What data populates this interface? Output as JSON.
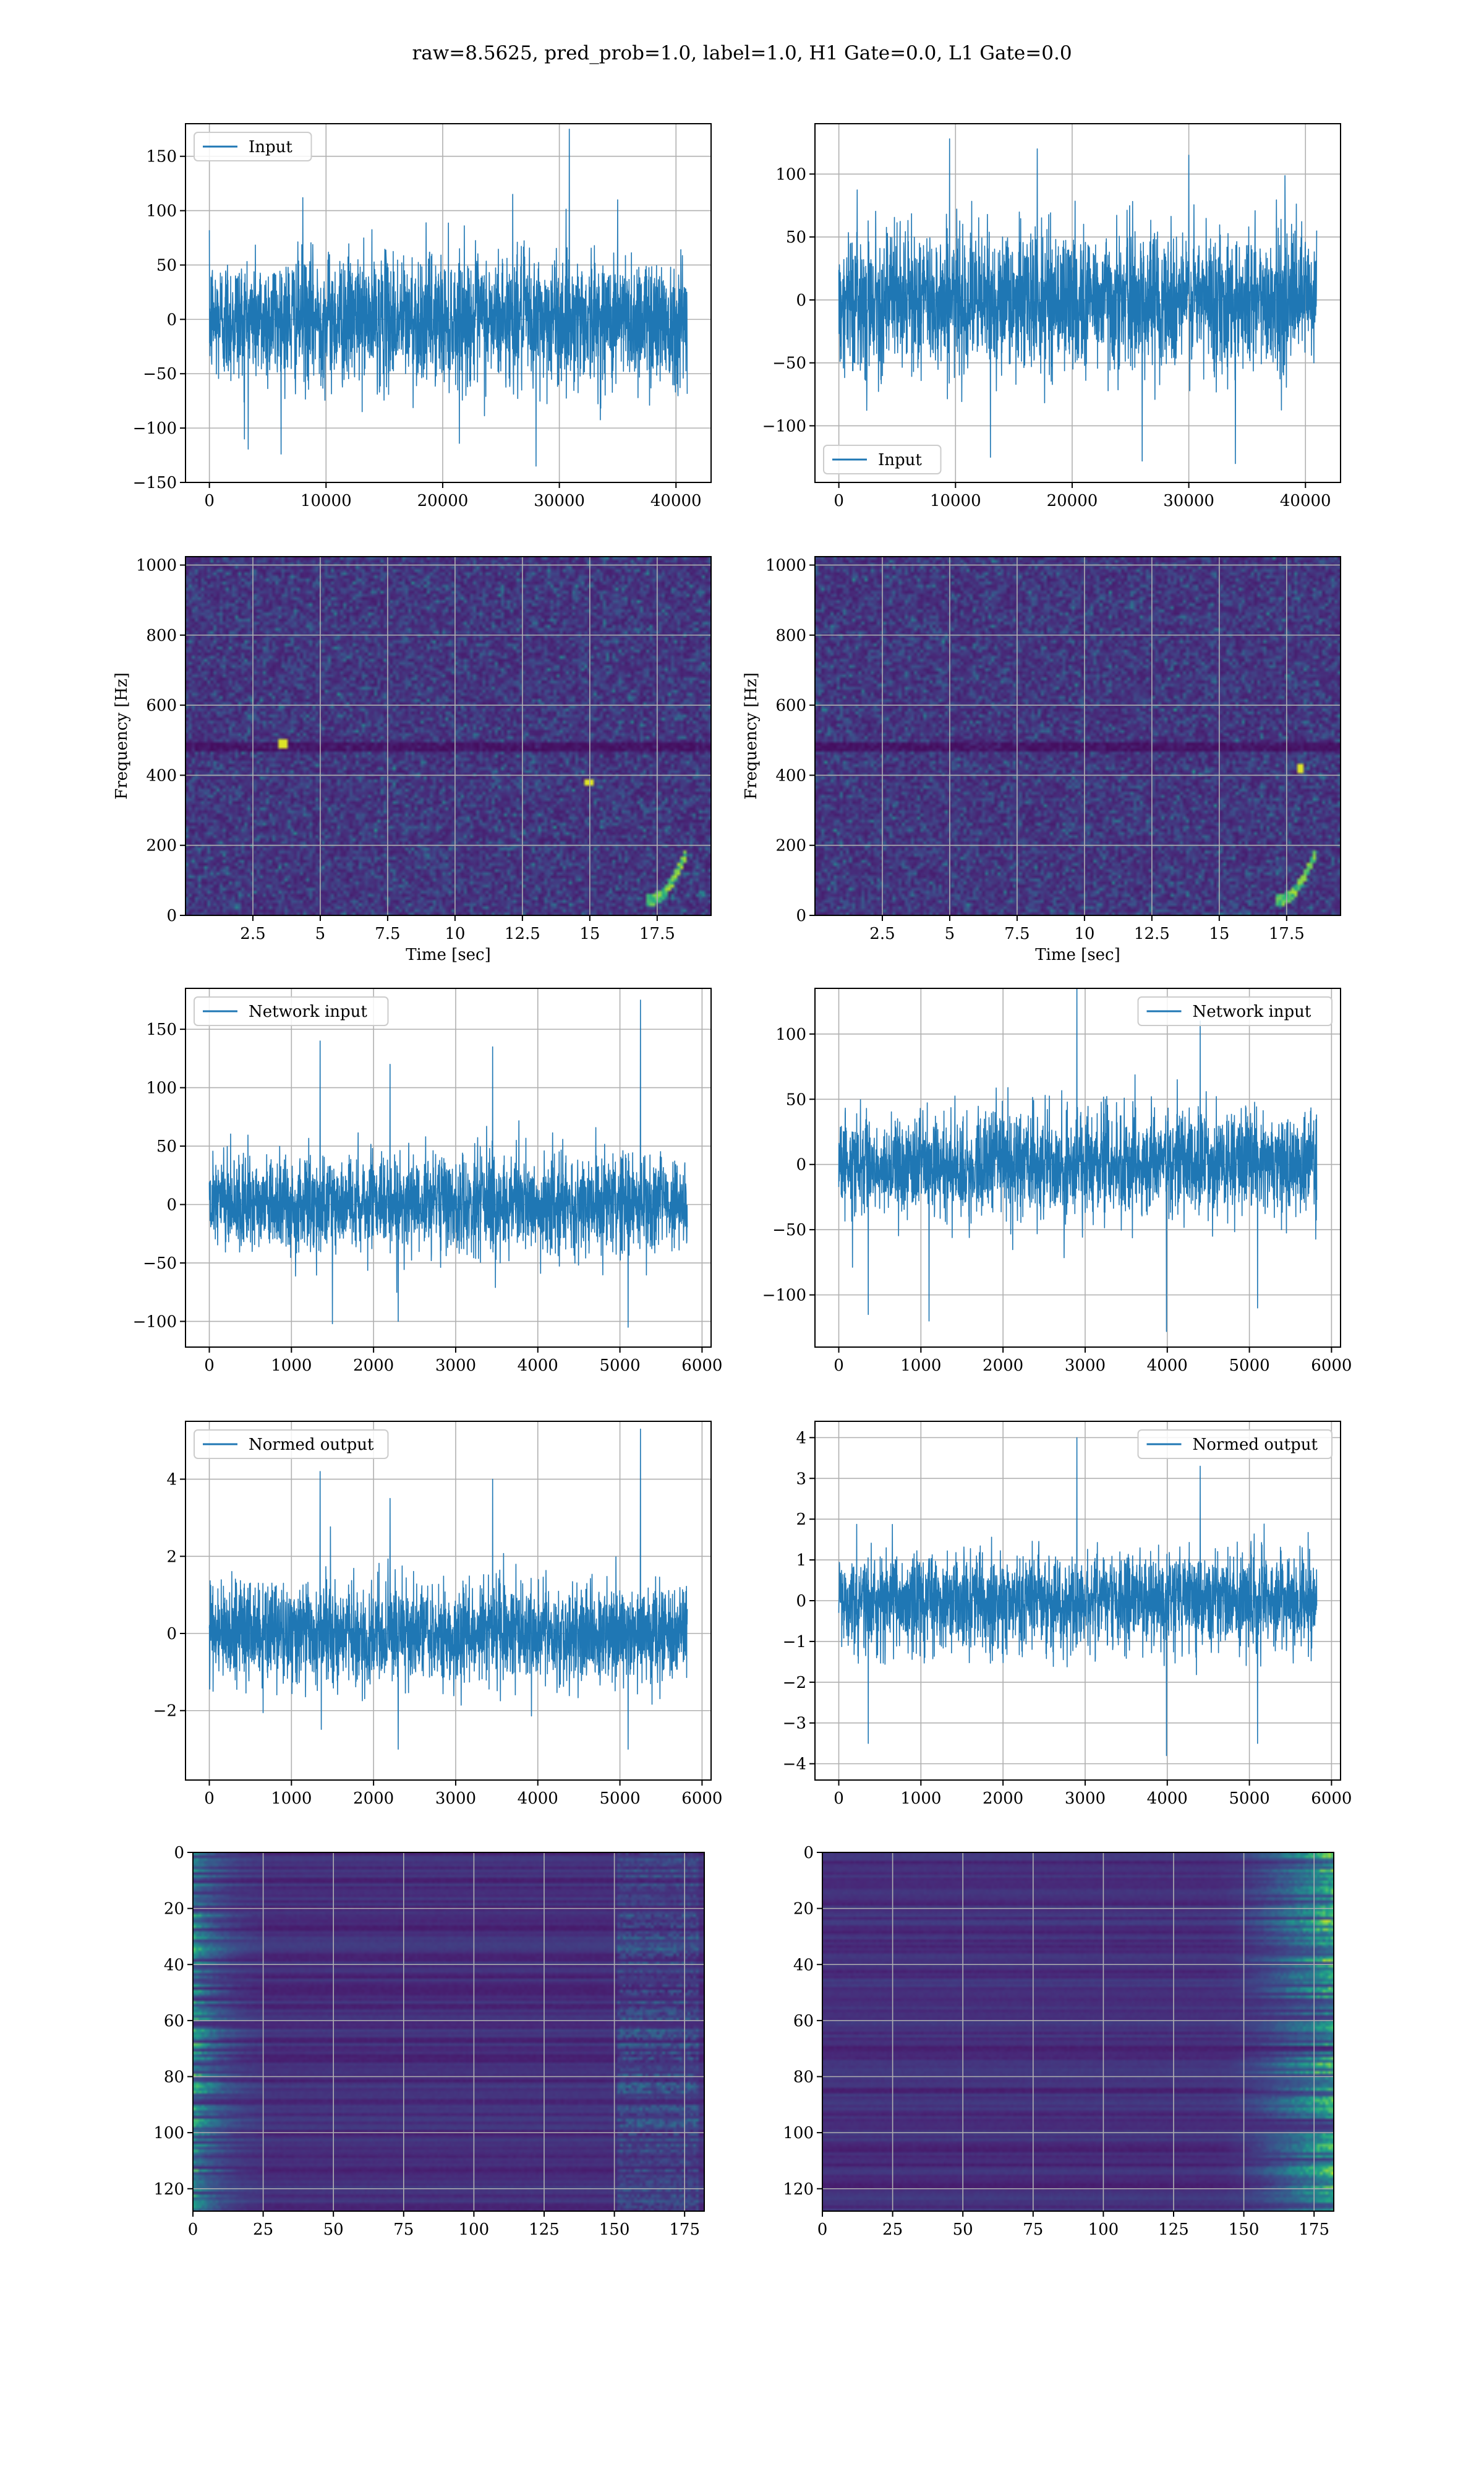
{
  "figure": {
    "title": "raw=8.5625, pred_prob=1.0, label=1.0, H1 Gate=0.0, L1 Gate=0.0"
  },
  "colors": {
    "line": "#1f77b4",
    "grid": "#b0b0b0",
    "viridis_low": "#440154",
    "viridis_mid": "#21918c",
    "viridis_high": "#fde725"
  },
  "chart_data": [
    {
      "id": "h1-input",
      "type": "line",
      "title": "",
      "xlabel": "",
      "ylabel": "",
      "xlim": [
        -2048,
        43008
      ],
      "ylim": [
        -150,
        180
      ],
      "xticks": [
        0,
        10000,
        20000,
        30000,
        40000
      ],
      "yticks": [
        -150,
        -100,
        -50,
        0,
        50,
        100,
        150
      ],
      "legend": "top-left",
      "grid": true,
      "series": [
        {
          "name": "Input",
          "x_range": [
            0,
            40960
          ],
          "typical_envelope": [
            -65,
            65
          ],
          "peaks": [
            [
              30850,
              175
            ],
            [
              28000,
              -135
            ],
            [
              8000,
              112
            ],
            [
              35000,
              110
            ],
            [
              3000,
              -110
            ],
            [
              26000,
              115
            ]
          ]
        }
      ]
    },
    {
      "id": "l1-input",
      "type": "line",
      "title": "",
      "xlabel": "",
      "ylabel": "",
      "xlim": [
        -2048,
        43008
      ],
      "ylim": [
        -145,
        140
      ],
      "xticks": [
        0,
        10000,
        20000,
        30000,
        40000
      ],
      "yticks": [
        -100,
        -50,
        0,
        50,
        100
      ],
      "legend": "bottom-left",
      "grid": true,
      "series": [
        {
          "name": "Input",
          "x_range": [
            0,
            40960
          ],
          "typical_envelope": [
            -60,
            60
          ],
          "peaks": [
            [
              9500,
              128
            ],
            [
              17000,
              120
            ],
            [
              30000,
              115
            ],
            [
              34000,
              -130
            ],
            [
              26000,
              -128
            ],
            [
              13000,
              -125
            ]
          ]
        }
      ]
    },
    {
      "id": "h1-spectrogram",
      "type": "heatmap",
      "title": "",
      "xlabel": "Time [sec]",
      "ylabel": "Frequency [Hz]",
      "xlim": [
        0,
        19.5
      ],
      "ylim": [
        0,
        1024
      ],
      "xticks": [
        2.5,
        5.0,
        7.5,
        10.0,
        12.5,
        15.0,
        17.5
      ],
      "yticks": [
        0,
        200,
        400,
        600,
        800,
        1000
      ],
      "grid": true,
      "colormap": "viridis",
      "features": {
        "chirp_end_time": 18.3,
        "dark_band_hz": 480,
        "hot_spots": [
          [
            15.0,
            380
          ],
          [
            3.6,
            490
          ]
        ]
      }
    },
    {
      "id": "l1-spectrogram",
      "type": "heatmap",
      "title": "",
      "xlabel": "Time [sec]",
      "ylabel": "Frequency [Hz]",
      "xlim": [
        0,
        19.5
      ],
      "ylim": [
        0,
        1024
      ],
      "xticks": [
        2.5,
        5.0,
        7.5,
        10.0,
        12.5,
        15.0,
        17.5
      ],
      "yticks": [
        0,
        200,
        400,
        600,
        800,
        1000
      ],
      "grid": true,
      "colormap": "viridis",
      "features": {
        "chirp_end_time": 18.3,
        "dark_band_hz": 480,
        "hot_spots": [
          [
            18.0,
            420
          ]
        ]
      }
    },
    {
      "id": "h1-network-input",
      "type": "line",
      "title": "",
      "xlabel": "",
      "ylabel": "",
      "xlim": [
        -290,
        6110
      ],
      "ylim": [
        -122,
        185
      ],
      "xticks": [
        0,
        1000,
        2000,
        3000,
        4000,
        5000,
        6000
      ],
      "yticks": [
        -100,
        -50,
        0,
        50,
        100,
        150
      ],
      "legend": "top-left",
      "grid": true,
      "series": [
        {
          "name": "Network input",
          "x_range": [
            0,
            5820
          ],
          "typical_envelope": [
            -45,
            45
          ],
          "peaks": [
            [
              5250,
              175
            ],
            [
              1350,
              140
            ],
            [
              3450,
              135
            ],
            [
              2200,
              120
            ],
            [
              5100,
              -105
            ],
            [
              2300,
              -100
            ],
            [
              1500,
              -102
            ]
          ]
        }
      ]
    },
    {
      "id": "l1-network-input",
      "type": "line",
      "title": "",
      "xlabel": "",
      "ylabel": "",
      "xlim": [
        -290,
        6110
      ],
      "ylim": [
        -140,
        135
      ],
      "xticks": [
        0,
        1000,
        2000,
        3000,
        4000,
        5000,
        6000
      ],
      "yticks": [
        -100,
        -50,
        0,
        50,
        100
      ],
      "legend": "top-right",
      "grid": true,
      "series": [
        {
          "name": "Network input",
          "x_range": [
            0,
            5820
          ],
          "typical_envelope": [
            -42,
            42
          ],
          "peaks": [
            [
              2900,
              135
            ],
            [
              4400,
              110
            ],
            [
              3990,
              -128
            ],
            [
              1100,
              -120
            ],
            [
              5100,
              -110
            ],
            [
              360,
              -115
            ]
          ]
        }
      ]
    },
    {
      "id": "h1-normed-output",
      "type": "line",
      "title": "",
      "xlabel": "",
      "ylabel": "",
      "xlim": [
        -290,
        6110
      ],
      "ylim": [
        -3.8,
        5.5
      ],
      "xticks": [
        0,
        1000,
        2000,
        3000,
        4000,
        5000,
        6000
      ],
      "yticks": [
        -2,
        0,
        2,
        4
      ],
      "legend": "top-left",
      "grid": true,
      "series": [
        {
          "name": "Normed output",
          "x_range": [
            0,
            5820
          ],
          "typical_envelope": [
            -1.4,
            1.4
          ],
          "peaks": [
            [
              5250,
              5.3
            ],
            [
              1350,
              4.2
            ],
            [
              3450,
              4.0
            ],
            [
              2200,
              3.5
            ],
            [
              5100,
              -3.0
            ],
            [
              2300,
              -3.0
            ]
          ]
        }
      ]
    },
    {
      "id": "l1-normed-output",
      "type": "line",
      "title": "",
      "xlabel": "",
      "ylabel": "",
      "xlim": [
        -290,
        6110
      ],
      "ylim": [
        -4.4,
        4.4
      ],
      "xticks": [
        0,
        1000,
        2000,
        3000,
        4000,
        5000,
        6000
      ],
      "yticks": [
        -4,
        -3,
        -2,
        -1,
        0,
        1,
        2,
        3,
        4
      ],
      "legend": "top-right",
      "grid": true,
      "series": [
        {
          "name": "Normed output",
          "x_range": [
            0,
            5820
          ],
          "typical_envelope": [
            -1.3,
            1.3
          ],
          "peaks": [
            [
              2900,
              4.0
            ],
            [
              3990,
              -3.8
            ],
            [
              5100,
              -3.5
            ],
            [
              360,
              -3.5
            ],
            [
              4400,
              3.3
            ]
          ]
        }
      ]
    },
    {
      "id": "h1-feature-map",
      "type": "heatmap",
      "title": "",
      "xlabel": "",
      "ylabel": "",
      "xlim": [
        0,
        182
      ],
      "ylim": [
        128,
        0
      ],
      "xticks": [
        0,
        25,
        50,
        75,
        100,
        125,
        150,
        175
      ],
      "yticks": [
        0,
        20,
        40,
        60,
        80,
        100,
        120
      ],
      "grid": true,
      "colormap": "viridis",
      "features": {
        "active_columns": "left (0-25) and right (150-180)"
      }
    },
    {
      "id": "l1-feature-map",
      "type": "heatmap",
      "title": "",
      "xlabel": "",
      "ylabel": "",
      "xlim": [
        0,
        182
      ],
      "ylim": [
        128,
        0
      ],
      "xticks": [
        0,
        25,
        50,
        75,
        100,
        125,
        150,
        175
      ],
      "yticks": [
        0,
        20,
        40,
        60,
        80,
        100,
        120
      ],
      "grid": true,
      "colormap": "viridis",
      "features": {
        "active_columns": "right (140-182)"
      }
    }
  ]
}
